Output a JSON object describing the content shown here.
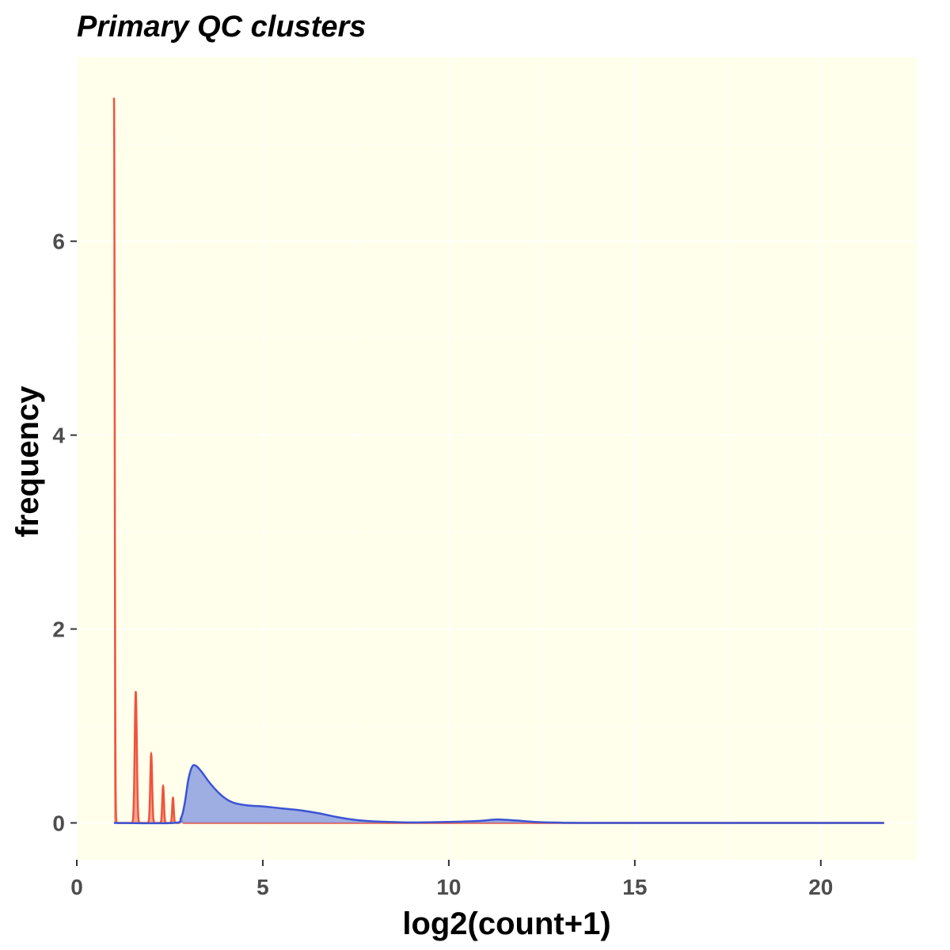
{
  "chart_data": {
    "type": "area",
    "title": "Primary QC clusters",
    "xlabel": "log2(count+1)",
    "ylabel": "frequency",
    "xlim": [
      0,
      22.6
    ],
    "ylim": [
      -0.38,
      7.9
    ],
    "xticks": [
      0,
      5,
      10,
      15,
      20
    ],
    "yticks": [
      0,
      2,
      4,
      6
    ],
    "grid": true,
    "legend": "none",
    "colors": {
      "panel": "#FFFFEC",
      "red": "#F0533C",
      "red_fill": "#F7998A",
      "blue": "#3B54D4",
      "blue_fill": "#8DA0E2"
    },
    "series": [
      {
        "color": "red",
        "peaks": [
          {
            "x": 1.0,
            "height": 7.48,
            "width": 0.018
          },
          {
            "x": 1.585,
            "height": 1.35,
            "width": 0.028
          },
          {
            "x": 2.0,
            "height": 0.71,
            "width": 0.025
          },
          {
            "x": 2.32,
            "height": 0.38,
            "width": 0.022
          },
          {
            "x": 2.585,
            "height": 0.26,
            "width": 0.02
          },
          {
            "x": 2.81,
            "height": 0.05,
            "width": 0.02
          }
        ],
        "x_range": [
          1.0,
          21.7
        ]
      },
      {
        "color": "blue",
        "points": [
          [
            1.0,
            0
          ],
          [
            2.6,
            0
          ],
          [
            2.8,
            0.05
          ],
          [
            2.9,
            0.2
          ],
          [
            3.0,
            0.45
          ],
          [
            3.1,
            0.58
          ],
          [
            3.2,
            0.59
          ],
          [
            3.35,
            0.53
          ],
          [
            3.6,
            0.4
          ],
          [
            3.9,
            0.28
          ],
          [
            4.2,
            0.21
          ],
          [
            4.6,
            0.18
          ],
          [
            5.0,
            0.17
          ],
          [
            5.5,
            0.15
          ],
          [
            6.0,
            0.13
          ],
          [
            6.5,
            0.1
          ],
          [
            7.0,
            0.06
          ],
          [
            7.5,
            0.03
          ],
          [
            8.0,
            0.015
          ],
          [
            9.0,
            0.005
          ],
          [
            10.0,
            0.01
          ],
          [
            10.8,
            0.02
          ],
          [
            11.3,
            0.035
          ],
          [
            11.8,
            0.025
          ],
          [
            12.3,
            0.01
          ],
          [
            13.0,
            0.003
          ],
          [
            14.0,
            0
          ],
          [
            21.7,
            0
          ]
        ]
      }
    ]
  }
}
